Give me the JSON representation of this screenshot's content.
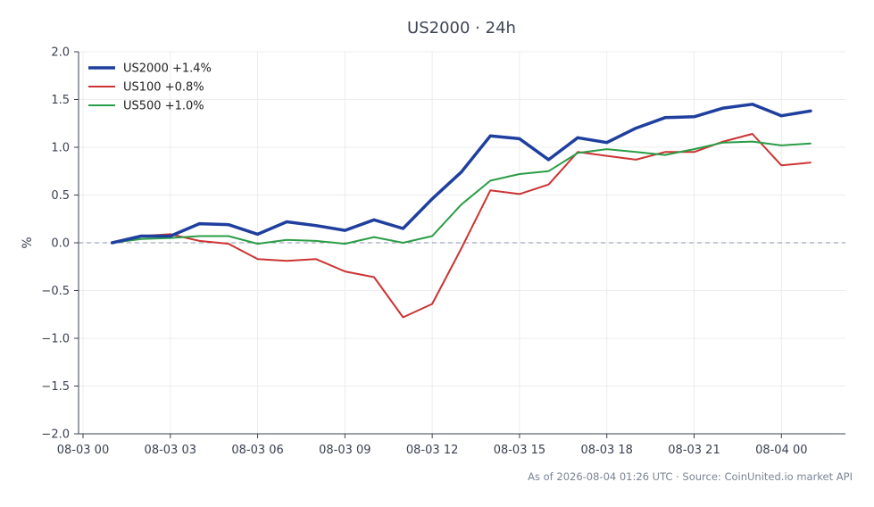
{
  "chart_data": {
    "type": "line",
    "title": "US2000 · 24h",
    "ylabel": "%",
    "xlabel": "",
    "ylim": [
      -2.0,
      2.0
    ],
    "yticks": [
      -2.0,
      -1.5,
      -1.0,
      -0.5,
      0.0,
      0.5,
      1.0,
      1.5,
      2.0
    ],
    "ytick_labels": [
      "−2.0",
      "−1.5",
      "−1.0",
      "−0.5",
      "0.0",
      "0.5",
      "1.0",
      "1.5",
      "2.0"
    ],
    "xlim": [
      0,
      26.2
    ],
    "xticks": [
      0,
      3,
      6,
      9,
      12,
      15,
      18,
      21,
      24
    ],
    "xtick_labels": [
      "08-03 00",
      "08-03 03",
      "08-03 06",
      "08-03 09",
      "08-03 12",
      "08-03 15",
      "08-03 18",
      "08-03 21",
      "08-04 00"
    ],
    "grid": true,
    "baseline": 0.0,
    "legend_position": "top-left",
    "x": [
      1,
      2,
      3,
      4,
      5,
      6,
      7,
      8,
      9,
      10,
      11,
      12,
      13,
      14,
      15,
      16,
      17,
      18,
      19,
      20,
      21,
      22,
      23,
      24,
      25
    ],
    "series": [
      {
        "name": "US2000 +1.4%",
        "color": "#1f3f9e",
        "width": 3.5,
        "values": [
          0.0,
          0.07,
          0.07,
          0.2,
          0.19,
          0.09,
          0.22,
          0.18,
          0.13,
          0.24,
          0.15,
          0.46,
          0.74,
          1.12,
          1.09,
          0.87,
          1.1,
          1.05,
          1.2,
          1.31,
          1.32,
          1.41,
          1.45,
          1.33,
          1.38
        ]
      },
      {
        "name": "US100 +0.8%",
        "color": "#cc3333",
        "width": 2,
        "values": [
          0.0,
          0.07,
          0.09,
          0.02,
          -0.01,
          -0.17,
          -0.19,
          -0.17,
          -0.3,
          -0.36,
          -0.78,
          -0.64,
          -0.06,
          0.55,
          0.51,
          0.61,
          0.95,
          0.91,
          0.87,
          0.95,
          0.95,
          1.06,
          1.14,
          0.81,
          0.84
        ]
      },
      {
        "name": "US500 +1.0%",
        "color": "#2a9d46",
        "width": 2,
        "values": [
          0.0,
          0.04,
          0.05,
          0.07,
          0.07,
          -0.01,
          0.03,
          0.02,
          -0.01,
          0.06,
          0.0,
          0.07,
          0.4,
          0.65,
          0.72,
          0.75,
          0.94,
          0.98,
          0.95,
          0.92,
          0.98,
          1.05,
          1.06,
          1.02,
          1.04
        ]
      }
    ]
  },
  "footer": "As of 2026-08-04 01:26 UTC · Source: CoinUnited.io market API"
}
